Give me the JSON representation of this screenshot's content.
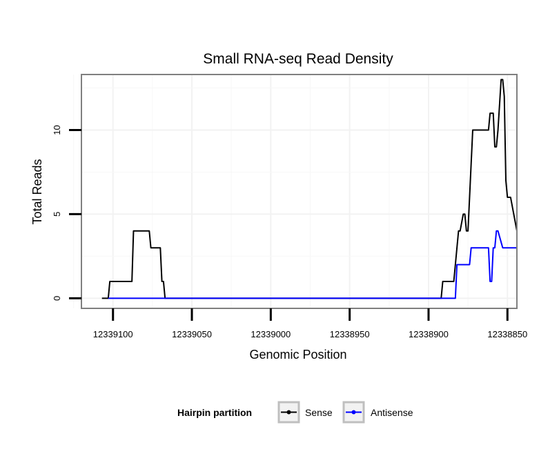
{
  "chart_data": {
    "type": "line",
    "title": "Small RNA-seq Read Density",
    "xlabel": "Genomic Position",
    "ylabel": "Total Reads",
    "xlim": [
      12339120,
      12338844
    ],
    "ylim": [
      -0.6,
      13.3
    ],
    "x_reversed": true,
    "x_ticks": [
      12339100,
      12339050,
      12339000,
      12338950,
      12338900,
      12338850
    ],
    "x_tick_labels": [
      "12339100",
      "12339050",
      "12339000",
      "12338950",
      "12338900",
      "12338850"
    ],
    "y_ticks": [
      0,
      5,
      10
    ],
    "y_tick_labels": [
      "0",
      "5",
      "10"
    ],
    "legend": {
      "title": "Hairpin partition",
      "position": "bottom",
      "entries": [
        "Sense",
        "Antisense"
      ]
    },
    "series": [
      {
        "name": "Sense",
        "color": "#000000",
        "x": [
          12339107,
          12339103,
          12339102,
          12339088,
          12339087,
          12339077,
          12339076,
          12339070,
          12339069,
          12339068,
          12339067,
          12339066,
          12338892,
          12338891,
          12338884,
          12338883,
          12338882,
          12338881,
          12338880,
          12338878,
          12338877,
          12338876,
          12338875,
          12338873,
          12338872,
          12338871,
          12338870,
          12338862,
          12338861,
          12338859,
          12338858,
          12338857,
          12338856,
          12338854,
          12338853,
          12338852,
          12338851,
          12338850,
          12338849,
          12338848,
          12338846,
          12338844
        ],
        "y": [
          0,
          0,
          1,
          1,
          4,
          4,
          3,
          3,
          1,
          1,
          0,
          0,
          0,
          1,
          1,
          2,
          3,
          4,
          4,
          5,
          5,
          4,
          4,
          8,
          10,
          10,
          10,
          10,
          11,
          11,
          9,
          9,
          10,
          13,
          13,
          12,
          7,
          6,
          6,
          6,
          5,
          4
        ]
      },
      {
        "name": "Antisense",
        "color": "#0000ff",
        "x": [
          12339103,
          12339067,
          12338883,
          12338882,
          12338874,
          12338873,
          12338863,
          12338862,
          12338861,
          12338860,
          12338859,
          12338858,
          12338857,
          12338856,
          12338853,
          12338852,
          12338844
        ],
        "y": [
          0,
          0,
          0,
          2,
          2,
          3,
          3,
          3,
          1,
          1,
          3,
          3,
          4,
          4,
          3,
          3,
          3
        ]
      }
    ]
  }
}
